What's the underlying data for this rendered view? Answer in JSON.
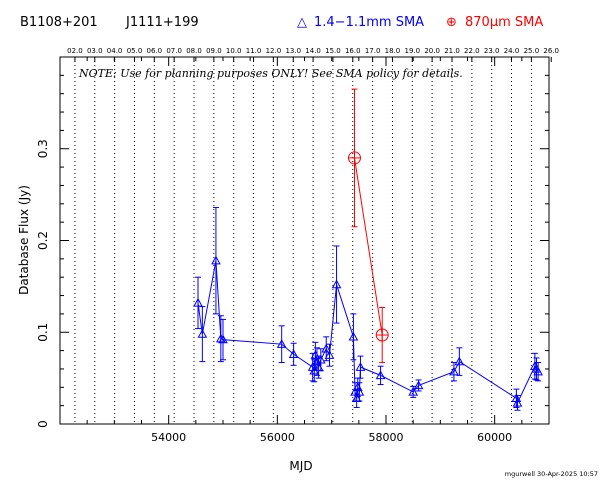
{
  "header": {
    "source_name": "B1108+201",
    "alt_name": "J1111+199",
    "legend": [
      {
        "symbol": "△",
        "label": "1.4−1.1mm SMA",
        "color": "#0000ff"
      },
      {
        "symbol": "⊕",
        "label": "870μm SMA",
        "color": "#ff0000"
      }
    ]
  },
  "note": "NOTE: Use for planning purposes ONLY! See SMA policy for details.",
  "credit": "mgurwell 30-Apr-2025 10:57",
  "colors": {
    "blue": "#0000ff",
    "red": "#ff0000",
    "axes": "#000000"
  },
  "chart_data": {
    "type": "scatter",
    "xlabel": "MJD",
    "ylabel": "Database Flux (Jy)",
    "xlim": [
      52000,
      61000
    ],
    "ylim": [
      0,
      0.4
    ],
    "x_ticks": [
      54000,
      56000,
      58000,
      60000
    ],
    "x_tick_labels": [
      "54000",
      "56000",
      "58000",
      "60000"
    ],
    "y_ticks": [
      0,
      0.1,
      0.2,
      0.3
    ],
    "y_tick_labels": [
      "0",
      "0.1",
      "0.2",
      "0.3"
    ],
    "top_axis": {
      "labels": [
        "02.0",
        "03.0",
        "04.0",
        "05.0",
        "06.0",
        "07.0",
        "08.0",
        "09.0",
        "10.0",
        "11.0",
        "12.0",
        "13.0",
        "14.0",
        "15.0",
        "16.0",
        "17.0",
        "18.0",
        "19.0",
        "20.0",
        "21.0",
        "22.0",
        "23.0",
        "24.0",
        "25.0",
        "26.0"
      ],
      "mjd": [
        52275,
        52640,
        53005,
        53371,
        53736,
        54101,
        54466,
        54832,
        55197,
        55562,
        55927,
        56293,
        56658,
        57023,
        57388,
        57754,
        58119,
        58484,
        58849,
        59215,
        59580,
        59945,
        60310,
        60676,
        61041
      ]
    },
    "grid": "dotted vertical lines at year boundaries",
    "series": [
      {
        "name": "1.4−1.1mm SMA",
        "color": "#0000ff",
        "marker": "triangle",
        "x": [
          54540,
          54620,
          54870,
          54960,
          55000,
          56080,
          56300,
          56650,
          56680,
          56700,
          56730,
          56760,
          56800,
          56900,
          56960,
          57090,
          57400,
          57430,
          57460,
          57480,
          57510,
          57530,
          57900,
          58500,
          58600,
          59250,
          59350,
          60400,
          60420,
          60740,
          60770,
          60800
        ],
        "y": [
          0.132,
          0.098,
          0.178,
          0.093,
          0.092,
          0.087,
          0.076,
          0.062,
          0.058,
          0.075,
          0.068,
          0.062,
          0.07,
          0.082,
          0.075,
          0.152,
          0.095,
          0.035,
          0.028,
          0.04,
          0.035,
          0.062,
          0.053,
          0.035,
          0.042,
          0.057,
          0.068,
          0.028,
          0.023,
          0.063,
          0.06,
          0.057
        ],
        "err": [
          0.028,
          0.03,
          0.058,
          0.025,
          0.022,
          0.02,
          0.012,
          0.015,
          0.012,
          0.014,
          0.015,
          0.012,
          0.012,
          0.013,
          0.012,
          0.042,
          0.025,
          0.01,
          0.01,
          0.01,
          0.01,
          0.012,
          0.01,
          0.006,
          0.006,
          0.01,
          0.015,
          0.01,
          0.008,
          0.014,
          0.012,
          0.01
        ],
        "line_x": [
          54540,
          54620,
          54870,
          54960,
          55000,
          56080,
          56300,
          56650,
          56680,
          56700,
          56730,
          56760,
          56800,
          56900,
          56960,
          57090,
          57400,
          57430,
          57460,
          57480,
          57510,
          57530,
          57900,
          58500,
          58600,
          59250,
          59350,
          60400,
          60420,
          60740,
          60770,
          60800
        ],
        "line_y": [
          0.132,
          0.098,
          0.178,
          0.093,
          0.092,
          0.087,
          0.076,
          0.062,
          0.058,
          0.075,
          0.068,
          0.062,
          0.07,
          0.082,
          0.075,
          0.152,
          0.095,
          0.035,
          0.028,
          0.04,
          0.035,
          0.062,
          0.053,
          0.035,
          0.042,
          0.057,
          0.068,
          0.028,
          0.023,
          0.063,
          0.06,
          0.057
        ]
      },
      {
        "name": "870μm SMA",
        "color": "#ff0000",
        "marker": "circle-plus",
        "x": [
          57420,
          57930
        ],
        "y": [
          0.29,
          0.097
        ],
        "err": [
          0.075,
          0.03
        ]
      }
    ]
  }
}
